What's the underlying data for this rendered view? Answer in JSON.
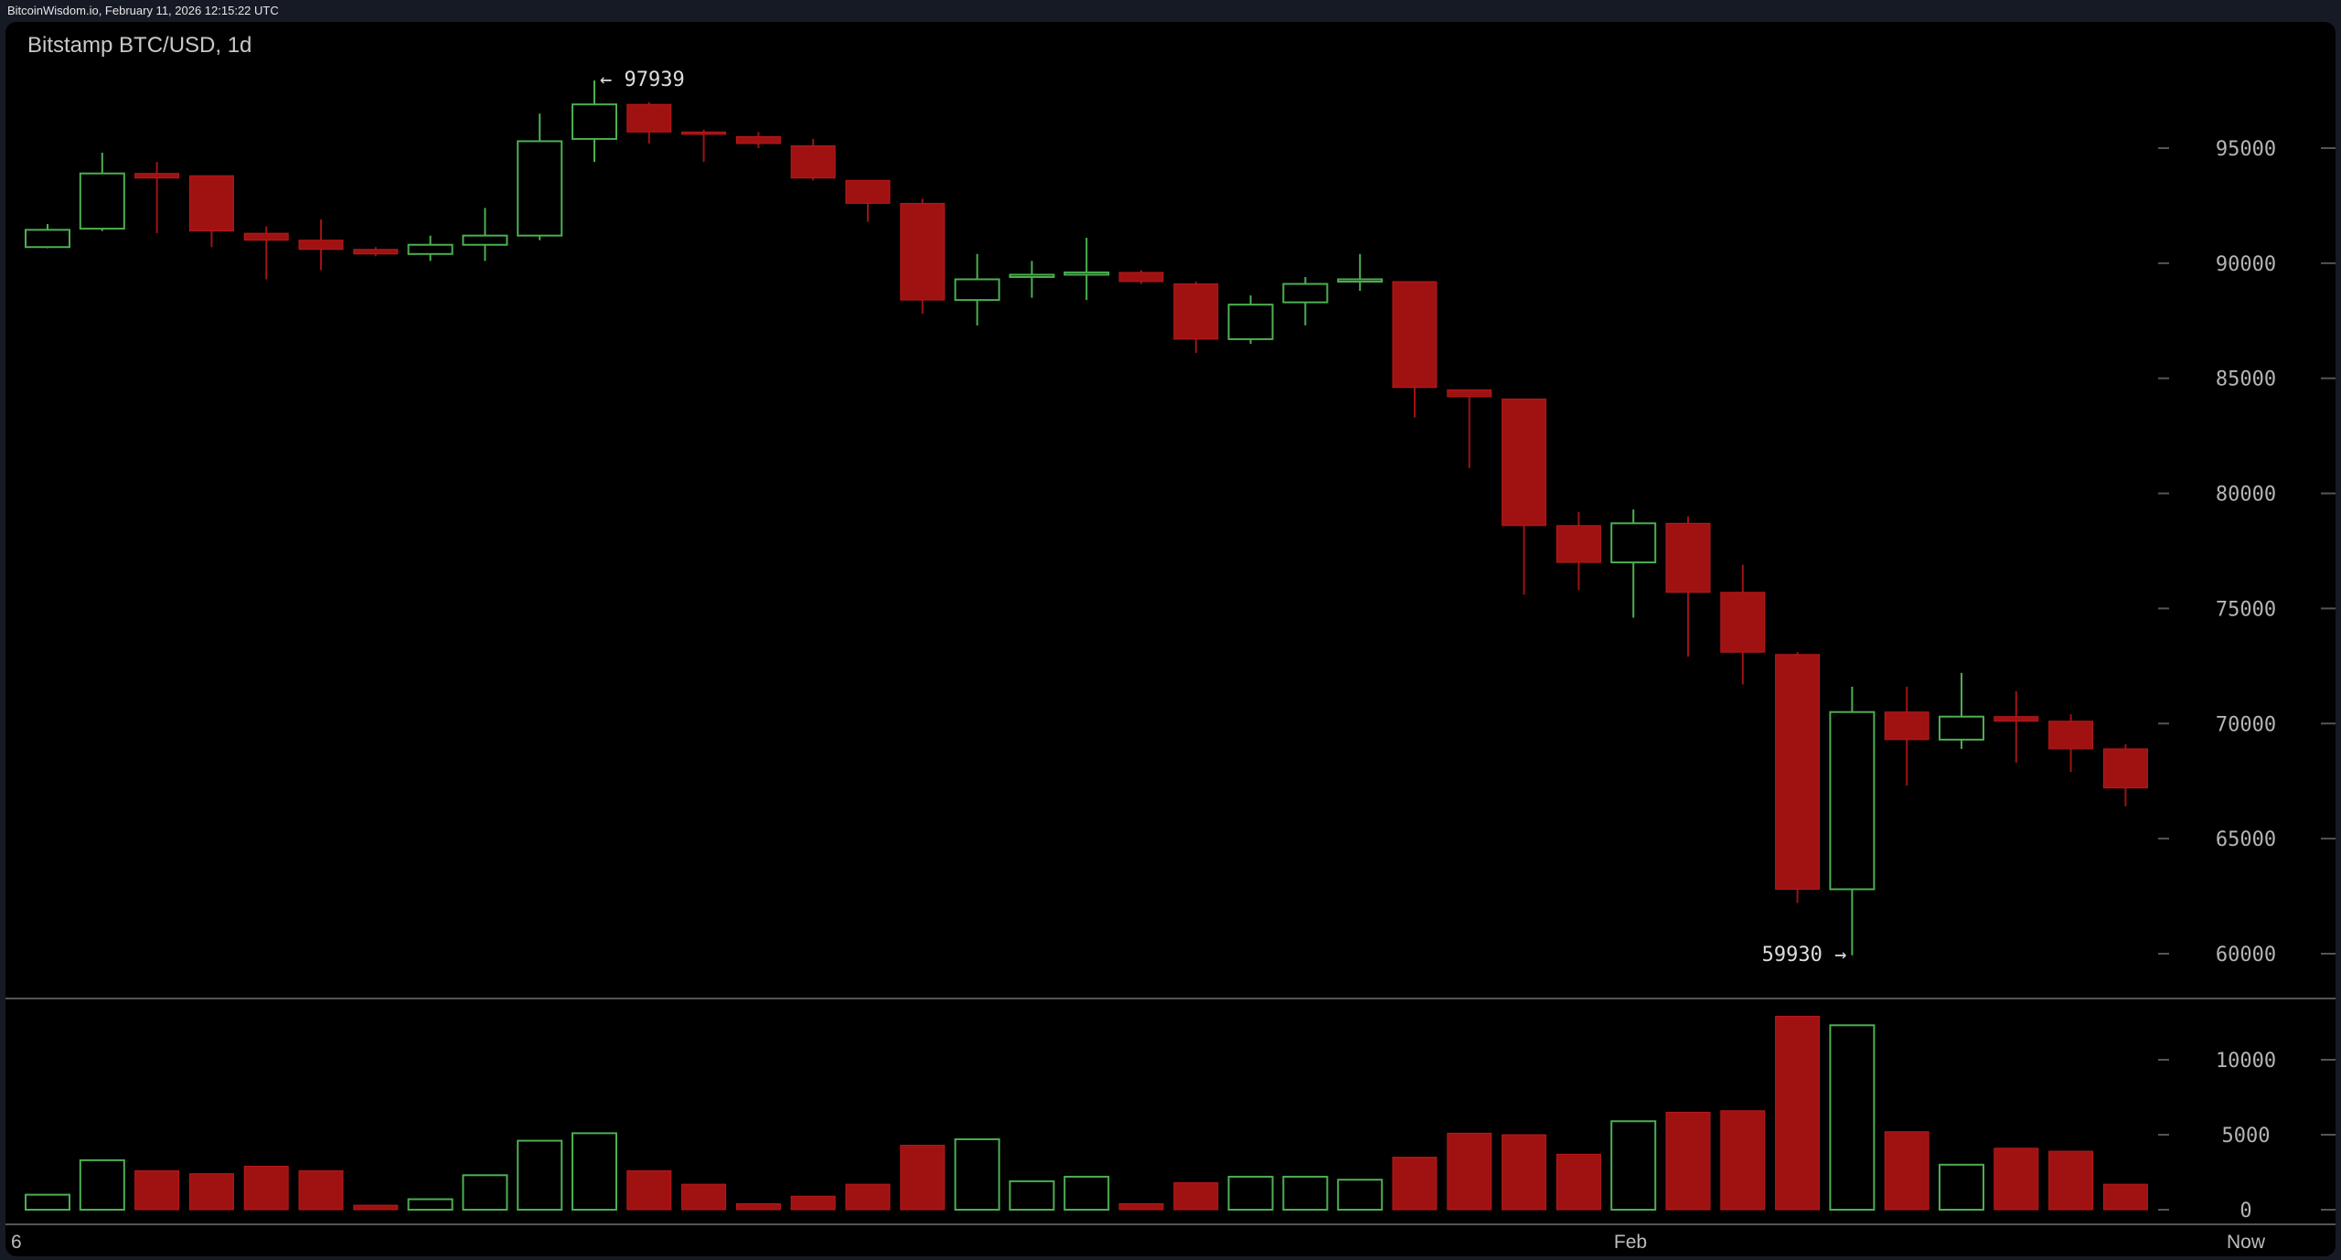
{
  "header": {
    "text": "BitcoinWisdom.io, February 11, 2026 12:15:22 UTC"
  },
  "chart_data": {
    "type": "candlestick",
    "title": "Bitstamp BTC/USD, 1d",
    "colors": {
      "up": "#4caf50",
      "down": "#a01212",
      "background": "#000000"
    },
    "price_axis": {
      "ticks": [
        60000,
        65000,
        70000,
        75000,
        80000,
        85000,
        90000,
        95000
      ],
      "range": [
        58500,
        99500
      ]
    },
    "volume_axis": {
      "ticks": [
        0,
        5000,
        10000
      ],
      "range": [
        0,
        13500
      ]
    },
    "x_labels": [
      "6",
      "Feb",
      "Now"
    ],
    "annotations": {
      "high": {
        "label": "← 97939",
        "value": 97939,
        "index": 10
      },
      "low": {
        "label": "59930 →",
        "value": 59930,
        "index": 33
      }
    },
    "candles": [
      {
        "o": 90700,
        "c": 91450,
        "h": 91700,
        "l": 90650,
        "v": 1000
      },
      {
        "o": 91500,
        "c": 93900,
        "h": 94800,
        "l": 91400,
        "v": 3300
      },
      {
        "o": 93900,
        "c": 93700,
        "h": 94400,
        "l": 91300,
        "v": 2600
      },
      {
        "o": 93800,
        "c": 91400,
        "h": 93800,
        "l": 90700,
        "v": 2400
      },
      {
        "o": 91300,
        "c": 91000,
        "h": 91600,
        "l": 89300,
        "v": 2900
      },
      {
        "o": 91000,
        "c": 90600,
        "h": 91900,
        "l": 89700,
        "v": 2600
      },
      {
        "o": 90600,
        "c": 90400,
        "h": 90700,
        "l": 90300,
        "v": 300
      },
      {
        "o": 90400,
        "c": 90800,
        "h": 91200,
        "l": 90100,
        "v": 700
      },
      {
        "o": 90800,
        "c": 91200,
        "h": 92400,
        "l": 90100,
        "v": 2300
      },
      {
        "o": 91200,
        "c": 95300,
        "h": 96500,
        "l": 91000,
        "v": 4600
      },
      {
        "o": 95400,
        "c": 96900,
        "h": 97939,
        "l": 94400,
        "v": 5100
      },
      {
        "o": 96900,
        "c": 95700,
        "h": 97000,
        "l": 95200,
        "v": 2600
      },
      {
        "o": 95700,
        "c": 95600,
        "h": 95800,
        "l": 94400,
        "v": 1700
      },
      {
        "o": 95500,
        "c": 95200,
        "h": 95700,
        "l": 95000,
        "v": 400
      },
      {
        "o": 95100,
        "c": 93700,
        "h": 95400,
        "l": 93600,
        "v": 900
      },
      {
        "o": 93600,
        "c": 92600,
        "h": 93600,
        "l": 91800,
        "v": 1700
      },
      {
        "o": 92600,
        "c": 88400,
        "h": 92800,
        "l": 87800,
        "v": 4300
      },
      {
        "o": 88400,
        "c": 89300,
        "h": 90400,
        "l": 87300,
        "v": 4700
      },
      {
        "o": 89400,
        "c": 89500,
        "h": 90100,
        "l": 88500,
        "v": 1900
      },
      {
        "o": 89500,
        "c": 89600,
        "h": 91100,
        "l": 88400,
        "v": 2200
      },
      {
        "o": 89600,
        "c": 89200,
        "h": 89700,
        "l": 89100,
        "v": 400
      },
      {
        "o": 89100,
        "c": 86700,
        "h": 89200,
        "l": 86100,
        "v": 1800
      },
      {
        "o": 86700,
        "c": 88200,
        "h": 88600,
        "l": 86500,
        "v": 2200
      },
      {
        "o": 88300,
        "c": 89100,
        "h": 89400,
        "l": 87300,
        "v": 2200
      },
      {
        "o": 89200,
        "c": 89300,
        "h": 90400,
        "l": 88800,
        "v": 2000
      },
      {
        "o": 89200,
        "c": 84600,
        "h": 89200,
        "l": 83300,
        "v": 3500
      },
      {
        "o": 84500,
        "c": 84200,
        "h": 84500,
        "l": 81100,
        "v": 5100
      },
      {
        "o": 84100,
        "c": 78600,
        "h": 84100,
        "l": 75600,
        "v": 5000
      },
      {
        "o": 78600,
        "c": 77000,
        "h": 79200,
        "l": 75800,
        "v": 3700
      },
      {
        "o": 77000,
        "c": 78700,
        "h": 79300,
        "l": 74600,
        "v": 5900
      },
      {
        "o": 78700,
        "c": 75700,
        "h": 79000,
        "l": 72900,
        "v": 6500
      },
      {
        "o": 75700,
        "c": 73100,
        "h": 76900,
        "l": 71700,
        "v": 6600
      },
      {
        "o": 73000,
        "c": 62800,
        "h": 73100,
        "l": 62200,
        "v": 12900
      },
      {
        "o": 62800,
        "c": 70500,
        "h": 71600,
        "l": 59930,
        "v": 12300
      },
      {
        "o": 70500,
        "c": 69300,
        "h": 71600,
        "l": 67300,
        "v": 5200
      },
      {
        "o": 69300,
        "c": 70300,
        "h": 72200,
        "l": 68900,
        "v": 3000
      },
      {
        "o": 70300,
        "c": 70100,
        "h": 71400,
        "l": 68300,
        "v": 4100
      },
      {
        "o": 70100,
        "c": 68900,
        "h": 70400,
        "l": 67900,
        "v": 3900
      },
      {
        "o": 68900,
        "c": 67200,
        "h": 69100,
        "l": 66400,
        "v": 1700
      }
    ]
  }
}
